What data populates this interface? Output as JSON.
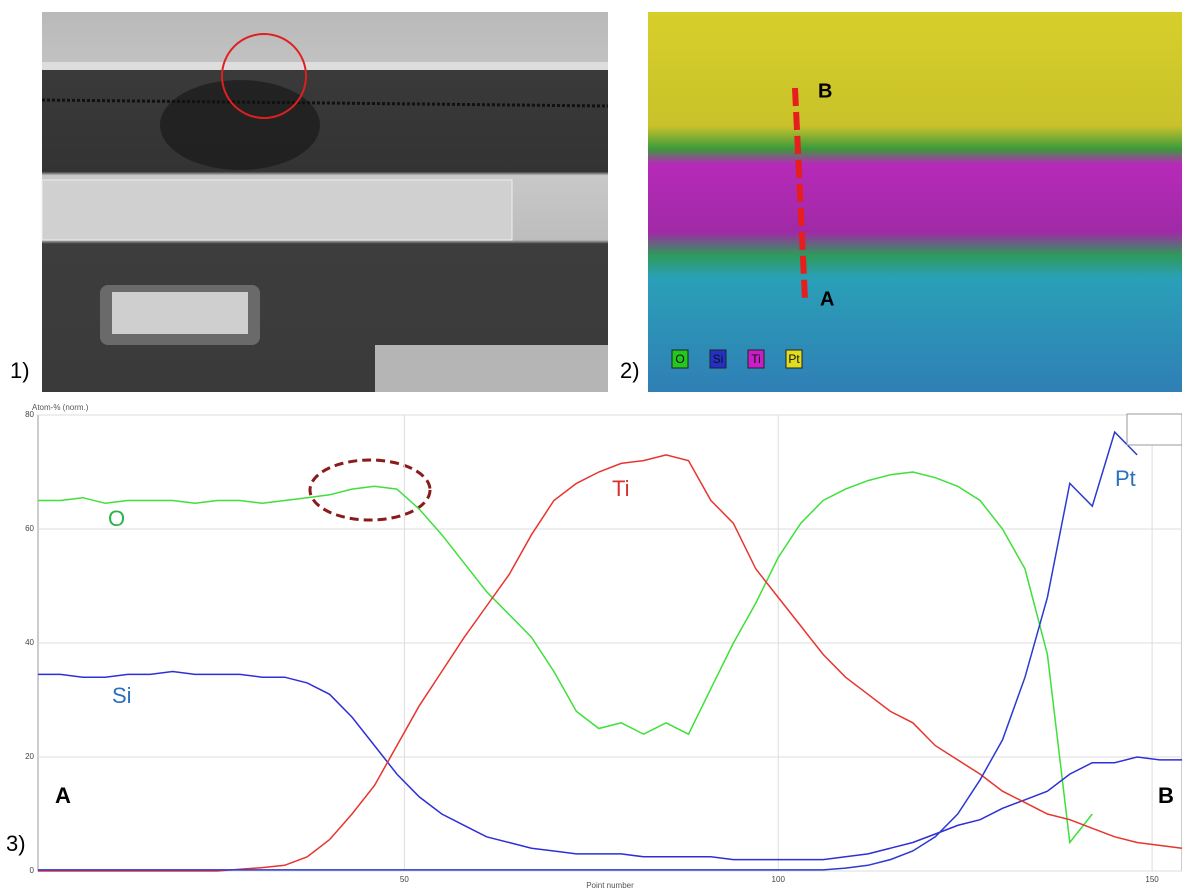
{
  "panel_1": {
    "label": "1)"
  },
  "panel_2": {
    "label": "2)",
    "line_labels": [
      "B",
      "A"
    ],
    "legend": [
      {
        "name": "O",
        "color": "#22c81e"
      },
      {
        "name": "Si",
        "color": "#2330c8"
      },
      {
        "name": "Ti",
        "color": "#c81ec8"
      },
      {
        "name": "Pt",
        "color": "#e0dc1e"
      }
    ]
  },
  "chart_data": {
    "type": "line",
    "panel_label": "3)",
    "ylabel": "Atom-% (norm.)",
    "xlabel": "Point number",
    "annotations": [
      "A",
      "B"
    ],
    "x": [
      1,
      4,
      7,
      10,
      13,
      16,
      19,
      22,
      25,
      28,
      31,
      34,
      37,
      40,
      43,
      46,
      49,
      52,
      55,
      58,
      61,
      64,
      67,
      70,
      73,
      76,
      79,
      82,
      85,
      88,
      91,
      94,
      97,
      100,
      103,
      106,
      109,
      112,
      115,
      118,
      121,
      124,
      127,
      130,
      133,
      136,
      139,
      142,
      145,
      148,
      151,
      154
    ],
    "series": [
      {
        "name": "O",
        "color": "#3ee03a",
        "values": [
          65,
          65,
          65.5,
          64.5,
          65,
          65,
          65,
          64.5,
          65,
          65,
          64.5,
          65,
          65.5,
          66,
          67,
          67.5,
          67,
          63.5,
          59,
          54,
          49,
          45,
          41,
          35,
          28,
          25,
          26,
          24,
          26,
          24,
          32,
          40,
          47,
          55,
          61,
          65,
          67,
          68.5,
          69.5,
          70,
          69,
          67.5,
          65,
          60,
          53,
          38,
          5,
          10,
          null,
          null,
          null,
          null
        ]
      },
      {
        "name": "Si",
        "color": "#2f2fd8",
        "values": [
          34.5,
          34.5,
          34,
          34,
          34.5,
          34.5,
          35,
          34.5,
          34.5,
          34.5,
          34,
          34,
          33,
          31,
          27,
          22,
          17,
          13,
          10,
          8,
          6,
          5,
          4,
          3.5,
          3,
          3,
          3,
          2.5,
          2.5,
          2.5,
          2.5,
          2,
          2,
          2,
          2,
          2,
          2.5,
          3,
          4,
          5,
          6.5,
          8,
          9,
          11,
          12.5,
          14,
          17,
          19,
          19,
          20,
          19.5,
          19.5
        ]
      },
      {
        "name": "Ti",
        "color": "#e8342e",
        "values": [
          0,
          0,
          0,
          0,
          0,
          0,
          0,
          0,
          0,
          0.3,
          0.6,
          1,
          2.5,
          5.5,
          10,
          15,
          22,
          29,
          35,
          41,
          46.5,
          52,
          59,
          65,
          68,
          70,
          71.5,
          72,
          73,
          72,
          65,
          61,
          53,
          48,
          43,
          38,
          34,
          31,
          28,
          26,
          22,
          19.5,
          17,
          14,
          12,
          10,
          9,
          7.5,
          6,
          5,
          4.5,
          4
        ]
      },
      {
        "name": "Pt",
        "color": "#2b3ad0",
        "values": [
          0.2,
          0.2,
          0.2,
          0.2,
          0.2,
          0.2,
          0.2,
          0.2,
          0.2,
          0.2,
          0.2,
          0.2,
          0.2,
          0.2,
          0.2,
          0.2,
          0.2,
          0.2,
          0.2,
          0.2,
          0.2,
          0.2,
          0.2,
          0.2,
          0.2,
          0.2,
          0.2,
          0.2,
          0.2,
          0.2,
          0.2,
          0.2,
          0.2,
          0.2,
          0.2,
          0.2,
          0.5,
          1,
          2,
          3.5,
          6,
          10,
          16,
          23,
          34,
          48,
          68,
          64,
          77,
          73,
          null,
          null
        ]
      }
    ],
    "xlim": [
      1,
      154
    ],
    "ylim": [
      0,
      80
    ],
    "xticks": [
      50,
      100,
      150
    ],
    "yticks": [
      0,
      20,
      40,
      60,
      80
    ],
    "grid": true
  }
}
